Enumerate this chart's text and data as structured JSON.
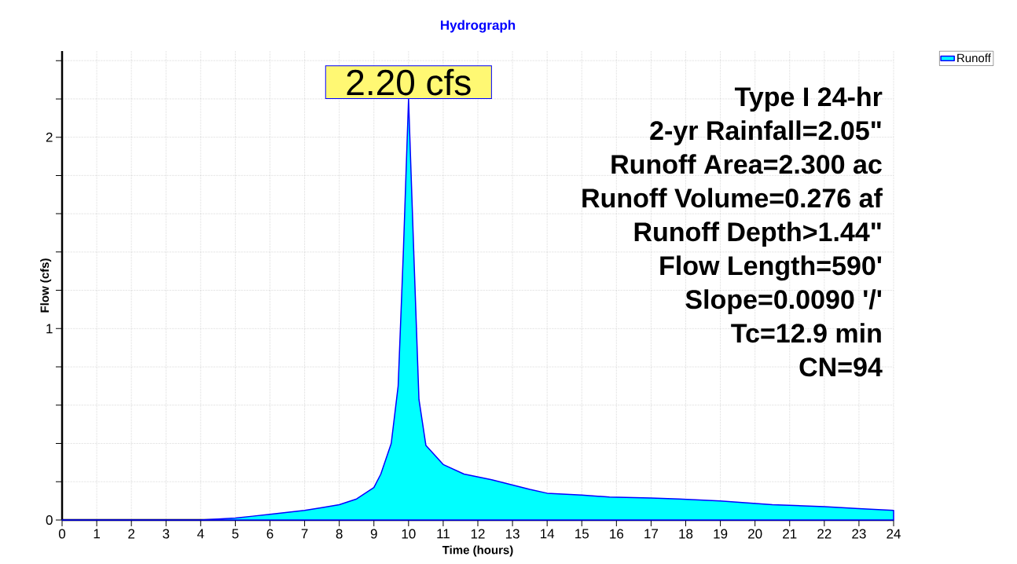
{
  "chart_data": {
    "type": "area",
    "title": "Hydrograph",
    "xlabel": "Time  (hours)",
    "ylabel": "Flow  (cfs)",
    "x": [
      0,
      4,
      4.5,
      5,
      5.5,
      6,
      6.5,
      7,
      7.5,
      8,
      8.5,
      9,
      9.2,
      9.5,
      9.7,
      9.85,
      10,
      10.15,
      10.3,
      10.5,
      11,
      11.6,
      12.4,
      13.5,
      14,
      15,
      15.8,
      17,
      17.8,
      19,
      20.5,
      22,
      23,
      24
    ],
    "series": [
      {
        "name": "Runoff",
        "color": "#00ffff",
        "values": [
          0,
          0,
          0.005,
          0.01,
          0.02,
          0.03,
          0.04,
          0.05,
          0.065,
          0.08,
          0.11,
          0.17,
          0.24,
          0.4,
          0.7,
          1.4,
          2.2,
          1.4,
          0.63,
          0.39,
          0.29,
          0.24,
          0.21,
          0.16,
          0.14,
          0.13,
          0.12,
          0.115,
          0.11,
          0.1,
          0.08,
          0.07,
          0.06,
          0.05
        ]
      }
    ],
    "xlim": [
      0,
      24
    ],
    "ylim": [
      0,
      2.45
    ],
    "xticks": [
      0,
      1,
      2,
      3,
      4,
      5,
      6,
      7,
      8,
      9,
      10,
      11,
      12,
      13,
      14,
      15,
      16,
      17,
      18,
      19,
      20,
      21,
      22,
      23,
      24
    ],
    "yticks": [
      0,
      {
        "value": 0.2,
        "label": null
      },
      {
        "value": 0.4,
        "label": null
      },
      {
        "value": 0.6,
        "label": null
      },
      {
        "value": 0.8,
        "label": null
      },
      1,
      {
        "value": 1.2,
        "label": null
      },
      {
        "value": 1.4,
        "label": null
      },
      {
        "value": 1.6,
        "label": null
      },
      {
        "value": 1.8,
        "label": null
      },
      2,
      {
        "value": 2.2,
        "label": null
      },
      {
        "value": 2.4,
        "label": null
      }
    ],
    "grid": true,
    "legend": "top right",
    "annotations": [
      {
        "text": "2.20 cfs",
        "x": 10,
        "y": 2.2
      },
      "Type I 24-hr",
      "2-yr Rainfall=2.05\"",
      "Runoff Area=2.300 ac",
      "Runoff Volume=0.276 af",
      "Runoff Depth>1.44\"",
      "Flow Length=590'",
      "Slope=0.0090 '/'",
      "Tc=12.9 min",
      "CN=94"
    ]
  }
}
